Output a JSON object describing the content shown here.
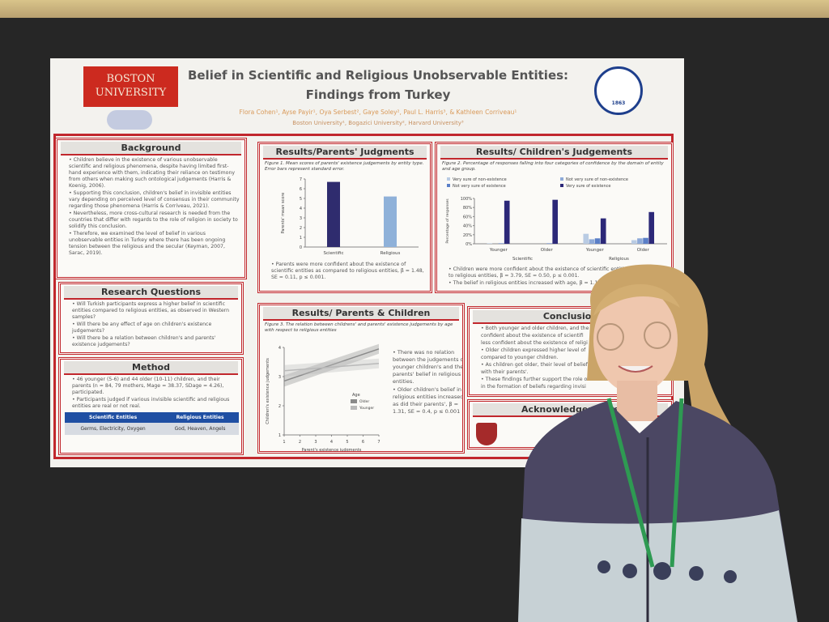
{
  "header": {
    "logo": "BOSTON UNIVERSITY",
    "title_line1": "Belief in Scientific and Religious Unobservable Entities:",
    "title_line2": "Findings from Turkey",
    "authors": "Flora Cohen¹, Ayse Payir¹, Oya Serbest², Gaye Soley², Paul L. Harris³, & Kathleen Corriveau¹",
    "affiliations": "Boston University¹, Bogazici University², Harvard University³",
    "partner_year": "1863"
  },
  "background": {
    "title": "Background",
    "bullets": [
      "Children believe in the existence of various unobservable scientific and religious phenomena, despite having limited first-hand experience with them, indicating their reliance on testimony from others when making such ontological judgements (Harris & Koenig, 2006).",
      "Supporting this conclusion, children's belief in invisible entities vary depending on perceived level of consensus in their community regarding those phenomena (Harris & Corriveau, 2021).",
      "Nevertheless, more cross-cultural research is needed from the countries that differ with regards to the role of religion in society to solidify this conclusion.",
      "Therefore, we examined the level of belief in various unobservable entities in Turkey where there has been ongoing tension between the religious and the secular (Keyman, 2007, Sarac, 2019)."
    ]
  },
  "research_questions": {
    "title": "Research Questions",
    "bullets": [
      "Will Turkish participants express a higher belief in scientific entities compared to religious entities, as observed in Western samples?",
      "Will there be any effect of age on children's existence judgements?",
      "Will there be a relation between children's and parents' existence judgements?"
    ]
  },
  "method": {
    "title": "Method",
    "bullets": [
      "46 younger (5-6) and 44 older (10-11) children, and their parents (n = 84, 79 mothers, Mage = 38.37, SDage = 4.26), participated.",
      "Participants judged if various invisible scientific and religious entities are real or not real."
    ],
    "table": {
      "headers": [
        "Scientific Entities",
        "Religious Entities"
      ],
      "rows": [
        [
          "Germs, Electricity, Oxygen",
          "God, Heaven, Angels"
        ]
      ]
    }
  },
  "figure1": {
    "title": "Results/Parents' Judgments",
    "caption": "Figure 1. Mean scores of parents' existence judgements by entity type. Error bars represent standard error.",
    "y_label": "Parents' mean score",
    "categories": [
      "Scientific",
      "Religious"
    ],
    "values": [
      6.7,
      5.2
    ],
    "colors": [
      "#2f2c6e",
      "#8fb1d9"
    ],
    "ylim": [
      0,
      7
    ],
    "yticks": [
      0,
      1,
      2,
      3,
      4,
      5,
      6,
      7
    ],
    "note": "Parents were more confident about the existence of scientific entities as compared to religious entities, β = 1.48, SE = 0.11, p ≤ 0.001."
  },
  "figure2": {
    "title": "Results/ Children's Judgements",
    "caption": "Figure 2. Percentage of responses falling into four categories of confidence by the domain of entity and age group.",
    "y_label": "Percentage of responses",
    "categories": [
      "Younger",
      "Older",
      "Younger",
      "Older"
    ],
    "groups": [
      "Scientific",
      "Religious"
    ],
    "series": [
      {
        "name": "Very sure of non-existence",
        "color": "#b9cbe3",
        "values": [
          1,
          0,
          22,
          8
        ]
      },
      {
        "name": "Not very sure of non-existence",
        "color": "#8eaad8",
        "values": [
          0,
          0,
          10,
          12
        ]
      },
      {
        "name": "Not very sure of existence",
        "color": "#5b7fc7",
        "values": [
          1,
          1,
          12,
          13
        ]
      },
      {
        "name": "Very sure of existence",
        "color": "#2c2878",
        "values": [
          95,
          97,
          56,
          70
        ]
      }
    ],
    "ylim": [
      0,
      100
    ],
    "yticks": [
      {
        "value": 0,
        "label": "0%"
      },
      {
        "value": 20,
        "label": "20%"
      },
      {
        "value": 40,
        "label": "40%"
      },
      {
        "value": 60,
        "label": "60%"
      },
      {
        "value": 80,
        "label": "80%"
      },
      {
        "value": 100,
        "label": "100%"
      }
    ],
    "notes": [
      "Children were more confident about the existence of scientific entities as compared to religious entities, β = 3.79, SE = 0.50, p ≤ 0.001.",
      "The belief in religious entities increased with age, β = 1.10"
    ]
  },
  "figure3": {
    "title": "Results/ Parents & Children",
    "caption": "Figure 3. The relation between childrens' and parents' existence judgements by age with respect to religious entities",
    "x_label": "Parent's existence judgments",
    "y_label": "Children's existence judgements",
    "xlim": [
      1,
      7
    ],
    "xticks": [
      1,
      2,
      3,
      4,
      5,
      6,
      7
    ],
    "ylim": [
      1,
      4
    ],
    "yticks": [
      1,
      2,
      3,
      4
    ],
    "legend_title": "Age",
    "x": [
      1,
      7
    ],
    "series": [
      {
        "name": "Older",
        "color": "#8a8a8a",
        "values": [
          2.85,
          3.95
        ]
      },
      {
        "name": "Younger",
        "color": "#b9b9b9",
        "values": [
          3.2,
          3.45
        ]
      }
    ],
    "bullets": [
      "There was no relation between the judgements of younger children's and their parents' belief in religious entities.",
      "Older children's belief in religious entities increased as did their parents', β = 1.31, SE = 0.4, p ≤ 0.001"
    ]
  },
  "conclusion": {
    "title": "Conclusion",
    "lines": [
      "• Both younger and older children, and the",
      "confident about the existence of scientifi",
      "less confident about the existence of religi",
      "• Older children expressed higher level of",
      "compared to younger children.",
      "• As children got older, their level of belief",
      "with their parents'.",
      "• These findings further support the role of testimony",
      "in the formation of beliefs regarding invisi"
    ]
  },
  "acknowledgements": {
    "title": "Acknowledgements"
  }
}
